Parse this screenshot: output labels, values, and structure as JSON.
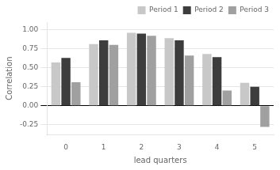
{
  "chart_data": {
    "type": "bar",
    "categories": [
      "0",
      "1",
      "2",
      "3",
      "4",
      "5"
    ],
    "series": [
      {
        "name": "Period 1",
        "color": "#c8c8c8",
        "values": [
          0.57,
          0.81,
          0.96,
          0.89,
          0.68,
          0.3
        ]
      },
      {
        "name": "Period 2",
        "color": "#3d3d3d",
        "values": [
          0.63,
          0.86,
          0.95,
          0.86,
          0.64,
          0.25
        ]
      },
      {
        "name": "Period 3",
        "color": "#a0a0a0",
        "values": [
          0.31,
          0.8,
          0.92,
          0.66,
          0.2,
          -0.28
        ]
      }
    ],
    "xlabel": "lead quarters",
    "ylabel": "Correlation",
    "ylim": [
      -0.38,
      1.1
    ],
    "yticks": [
      -0.25,
      {
        "value": 0,
        "label": "0.00"
      },
      0.25,
      {
        "value": 0.5,
        "label": "0.50"
      },
      0.75,
      {
        "value": 1,
        "label": "1.00"
      }
    ],
    "grid": true,
    "legend": "upper right"
  }
}
